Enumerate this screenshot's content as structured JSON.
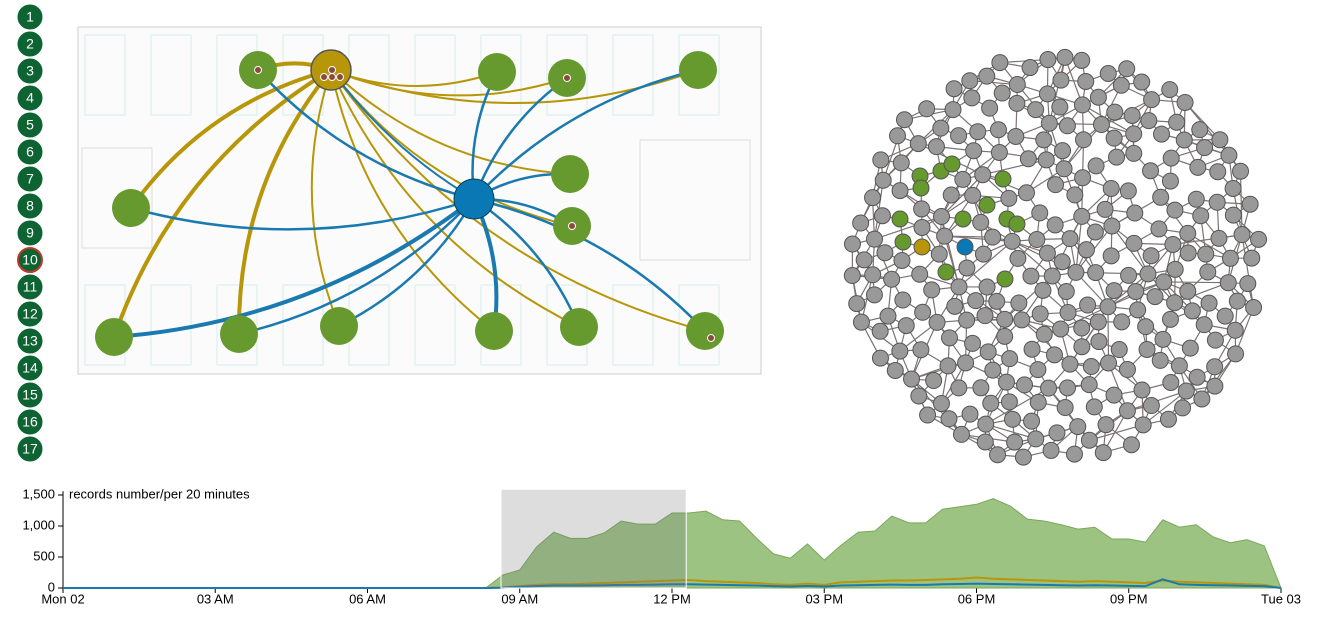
{
  "buttons": [
    "1",
    "2",
    "3",
    "4",
    "5",
    "6",
    "7",
    "8",
    "9",
    "10",
    "11",
    "12",
    "13",
    "14",
    "15",
    "16",
    "17"
  ],
  "chart_data": {
    "type": "area",
    "title": "records number/per 20 minutes",
    "x": [
      0,
      8.33,
      8.67,
      9,
      9.33,
      9.67,
      10,
      10.33,
      10.67,
      11,
      11.33,
      11.67,
      12,
      12.33,
      12.67,
      13,
      13.33,
      13.67,
      14,
      14.33,
      14.67,
      15,
      15.33,
      15.67,
      16,
      16.33,
      16.67,
      17,
      17.33,
      17.67,
      18,
      18.33,
      18.67,
      19,
      19.33,
      19.67,
      20,
      20.33,
      20.67,
      21,
      21.33,
      21.67,
      22,
      22.33,
      22.67,
      23,
      23.33,
      23.67,
      24
    ],
    "series": [
      {
        "color": "#9dc383",
        "values": [
          0,
          0,
          210,
          290,
          660,
          900,
          800,
          800,
          890,
          1080,
          1030,
          1030,
          1210,
          1210,
          1240,
          1100,
          1080,
          800,
          550,
          480,
          710,
          450,
          690,
          900,
          920,
          1160,
          1050,
          1050,
          1270,
          1310,
          1350,
          1440,
          1320,
          1110,
          1080,
          1020,
          950,
          980,
          790,
          790,
          740,
          1100,
          980,
          1020,
          820,
          730,
          780,
          680,
          0
        ]
      },
      {
        "color": "#b8960a",
        "values": [
          0,
          0,
          10,
          30,
          50,
          60,
          60,
          70,
          80,
          90,
          100,
          110,
          120,
          130,
          110,
          100,
          90,
          80,
          60,
          50,
          70,
          50,
          90,
          100,
          110,
          120,
          120,
          130,
          140,
          150,
          170,
          150,
          140,
          130,
          120,
          110,
          100,
          110,
          100,
          90,
          80,
          120,
          100,
          90,
          80,
          70,
          60,
          50,
          0
        ]
      },
      {
        "color": "#1a7ab0",
        "values": [
          0,
          0,
          5,
          20,
          30,
          40,
          40,
          40,
          45,
          50,
          50,
          55,
          60,
          60,
          55,
          50,
          45,
          40,
          30,
          25,
          35,
          25,
          40,
          45,
          50,
          55,
          50,
          50,
          60,
          65,
          70,
          65,
          60,
          55,
          50,
          45,
          40,
          45,
          40,
          35,
          30,
          140,
          60,
          50,
          45,
          40,
          35,
          30,
          0
        ]
      }
    ],
    "xlim": [
      0,
      24
    ],
    "xticks": [
      {
        "value": 0,
        "label": "Mon 02"
      },
      {
        "value": 3,
        "label": "03 AM"
      },
      {
        "value": 6,
        "label": "06 AM"
      },
      {
        "value": 9,
        "label": "09 AM"
      },
      {
        "value": 12,
        "label": "12 PM"
      },
      {
        "value": 15,
        "label": "03 PM"
      },
      {
        "value": 18,
        "label": "06 PM"
      },
      {
        "value": 21,
        "label": "09 PM"
      },
      {
        "value": 24,
        "label": "Tue 03"
      }
    ],
    "ylim": [
      0,
      1560
    ],
    "yticks": [
      0,
      500,
      {
        "value": 1000,
        "label": "1,000"
      },
      {
        "value": 1500,
        "label": "1,500"
      }
    ],
    "brush": [
      8.63,
      12.28
    ]
  }
}
